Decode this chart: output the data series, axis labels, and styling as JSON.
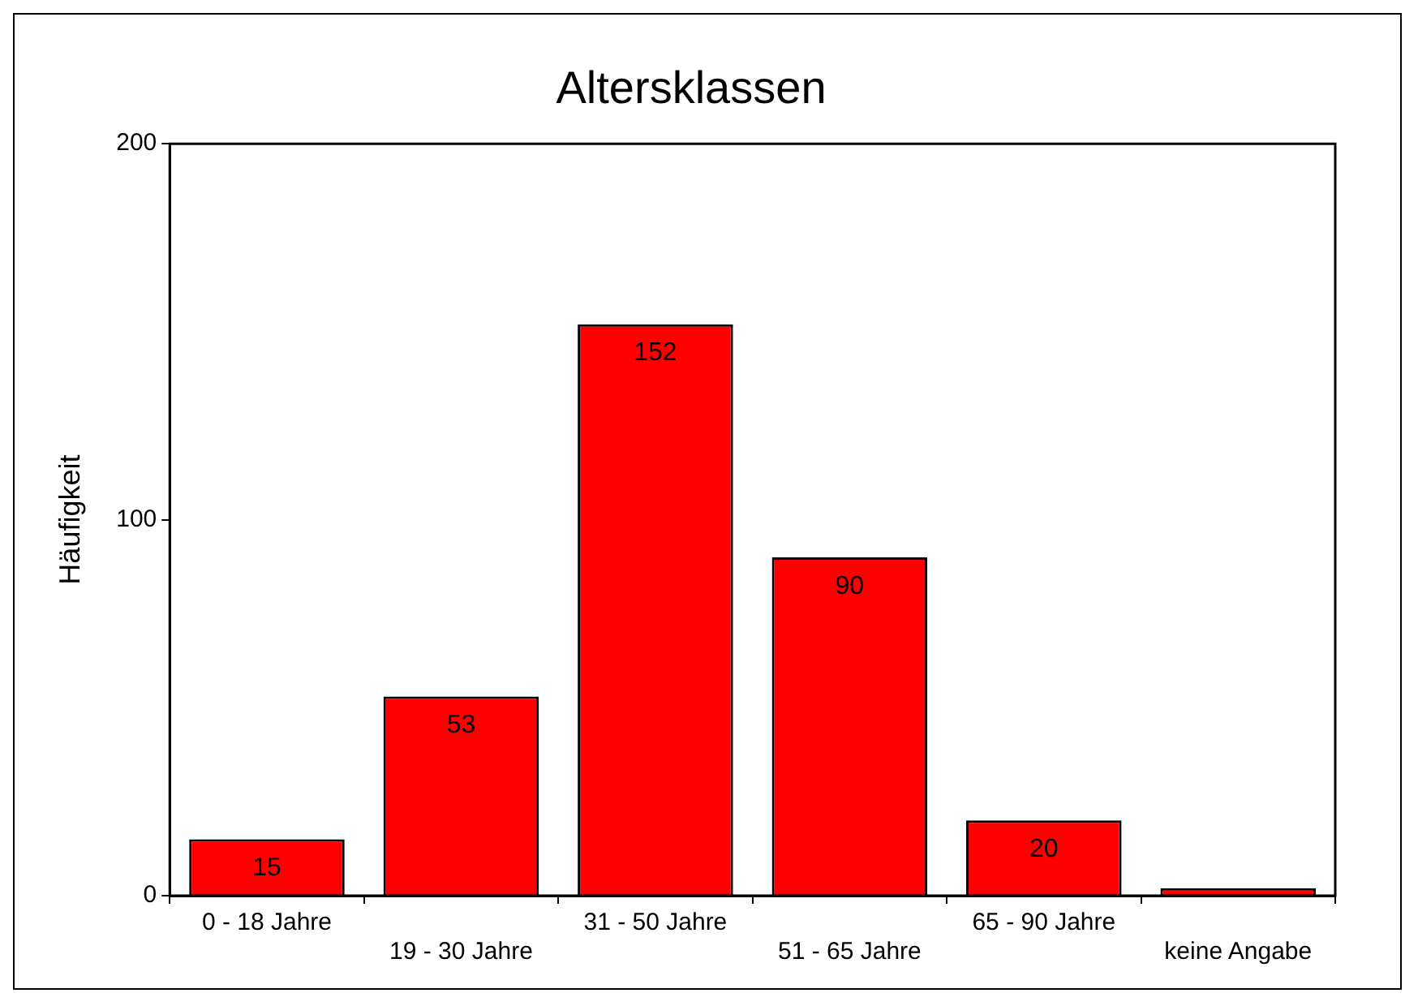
{
  "chart_data": {
    "type": "bar",
    "title": "Altersklassen",
    "ylabel": "Häufigkeit",
    "categories": [
      "0 - 18 Jahre",
      "19 - 30 Jahre",
      "31 - 50 Jahre",
      "51 - 65 Jahre",
      "65 - 90 Jahre",
      "keine Angabe"
    ],
    "values": [
      15,
      53,
      152,
      90,
      20,
      2
    ],
    "value_labels": [
      "15",
      "53",
      "152",
      "90",
      "20",
      null
    ],
    "color": "#ff0000",
    "ylim": [
      0,
      200
    ],
    "yticks": [
      0,
      100,
      200
    ],
    "grid": false,
    "legend": false
  }
}
